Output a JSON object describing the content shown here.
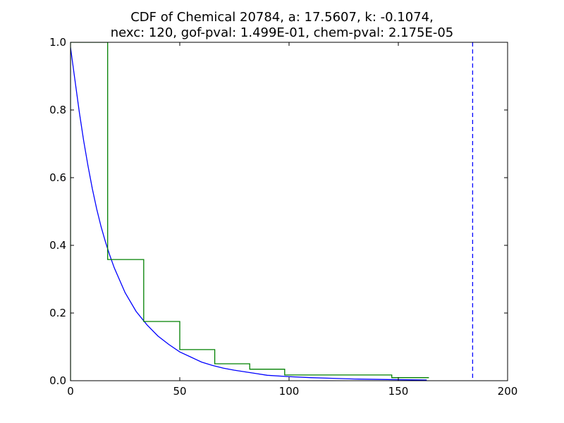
{
  "chart_data": {
    "type": "line",
    "title_lines": [
      "CDF of Chemical 20784, a: 17.5607, k: -0.1074,",
      "nexc: 120, gof-pval: 1.499E-01, chem-pval: 2.175E-05"
    ],
    "xlabel": "",
    "ylabel": "",
    "xlim": [
      0,
      200
    ],
    "ylim": [
      0,
      1
    ],
    "x_ticks": [
      0,
      50,
      100,
      150,
      200
    ],
    "y_ticks": [
      0.0,
      0.2,
      0.4,
      0.6,
      0.8,
      1.0
    ],
    "x_tick_labels": [
      "0",
      "50",
      "100",
      "150",
      "200"
    ],
    "y_tick_labels": [
      "0.0",
      "0.2",
      "0.4",
      "0.6",
      "0.8",
      "1.0"
    ],
    "grid": false,
    "series": [
      {
        "kind": "fitted-curve",
        "color": "#0000ff",
        "x": [
          0,
          2,
          4,
          6,
          8,
          10,
          12,
          14,
          16,
          18,
          20,
          25,
          30,
          35,
          40,
          45,
          50,
          55,
          60,
          65,
          70,
          75,
          80,
          85,
          90,
          100,
          110,
          120,
          130,
          140,
          150,
          163
        ],
        "y": [
          0.985,
          0.89,
          0.795,
          0.71,
          0.635,
          0.567,
          0.507,
          0.455,
          0.41,
          0.37,
          0.334,
          0.26,
          0.205,
          0.165,
          0.132,
          0.107,
          0.085,
          0.07,
          0.055,
          0.045,
          0.037,
          0.031,
          0.026,
          0.021,
          0.016,
          0.012,
          0.009,
          0.007,
          0.005,
          0.004,
          0.003,
          0.002
        ]
      },
      {
        "kind": "empirical-step",
        "color": "#008000",
        "x": [
          0,
          0,
          17,
          17,
          33.5,
          33.5,
          50,
          50,
          66,
          66,
          82,
          82,
          98,
          98,
          147,
          147,
          164
        ],
        "y": [
          0,
          1,
          1,
          0.358,
          0.358,
          0.175,
          0.175,
          0.092,
          0.092,
          0.05,
          0.05,
          0.034,
          0.034,
          0.017,
          0.017,
          0.009,
          0.009
        ]
      }
    ],
    "vline": {
      "x": 184,
      "color": "#0000ff",
      "style": "dashed"
    }
  }
}
